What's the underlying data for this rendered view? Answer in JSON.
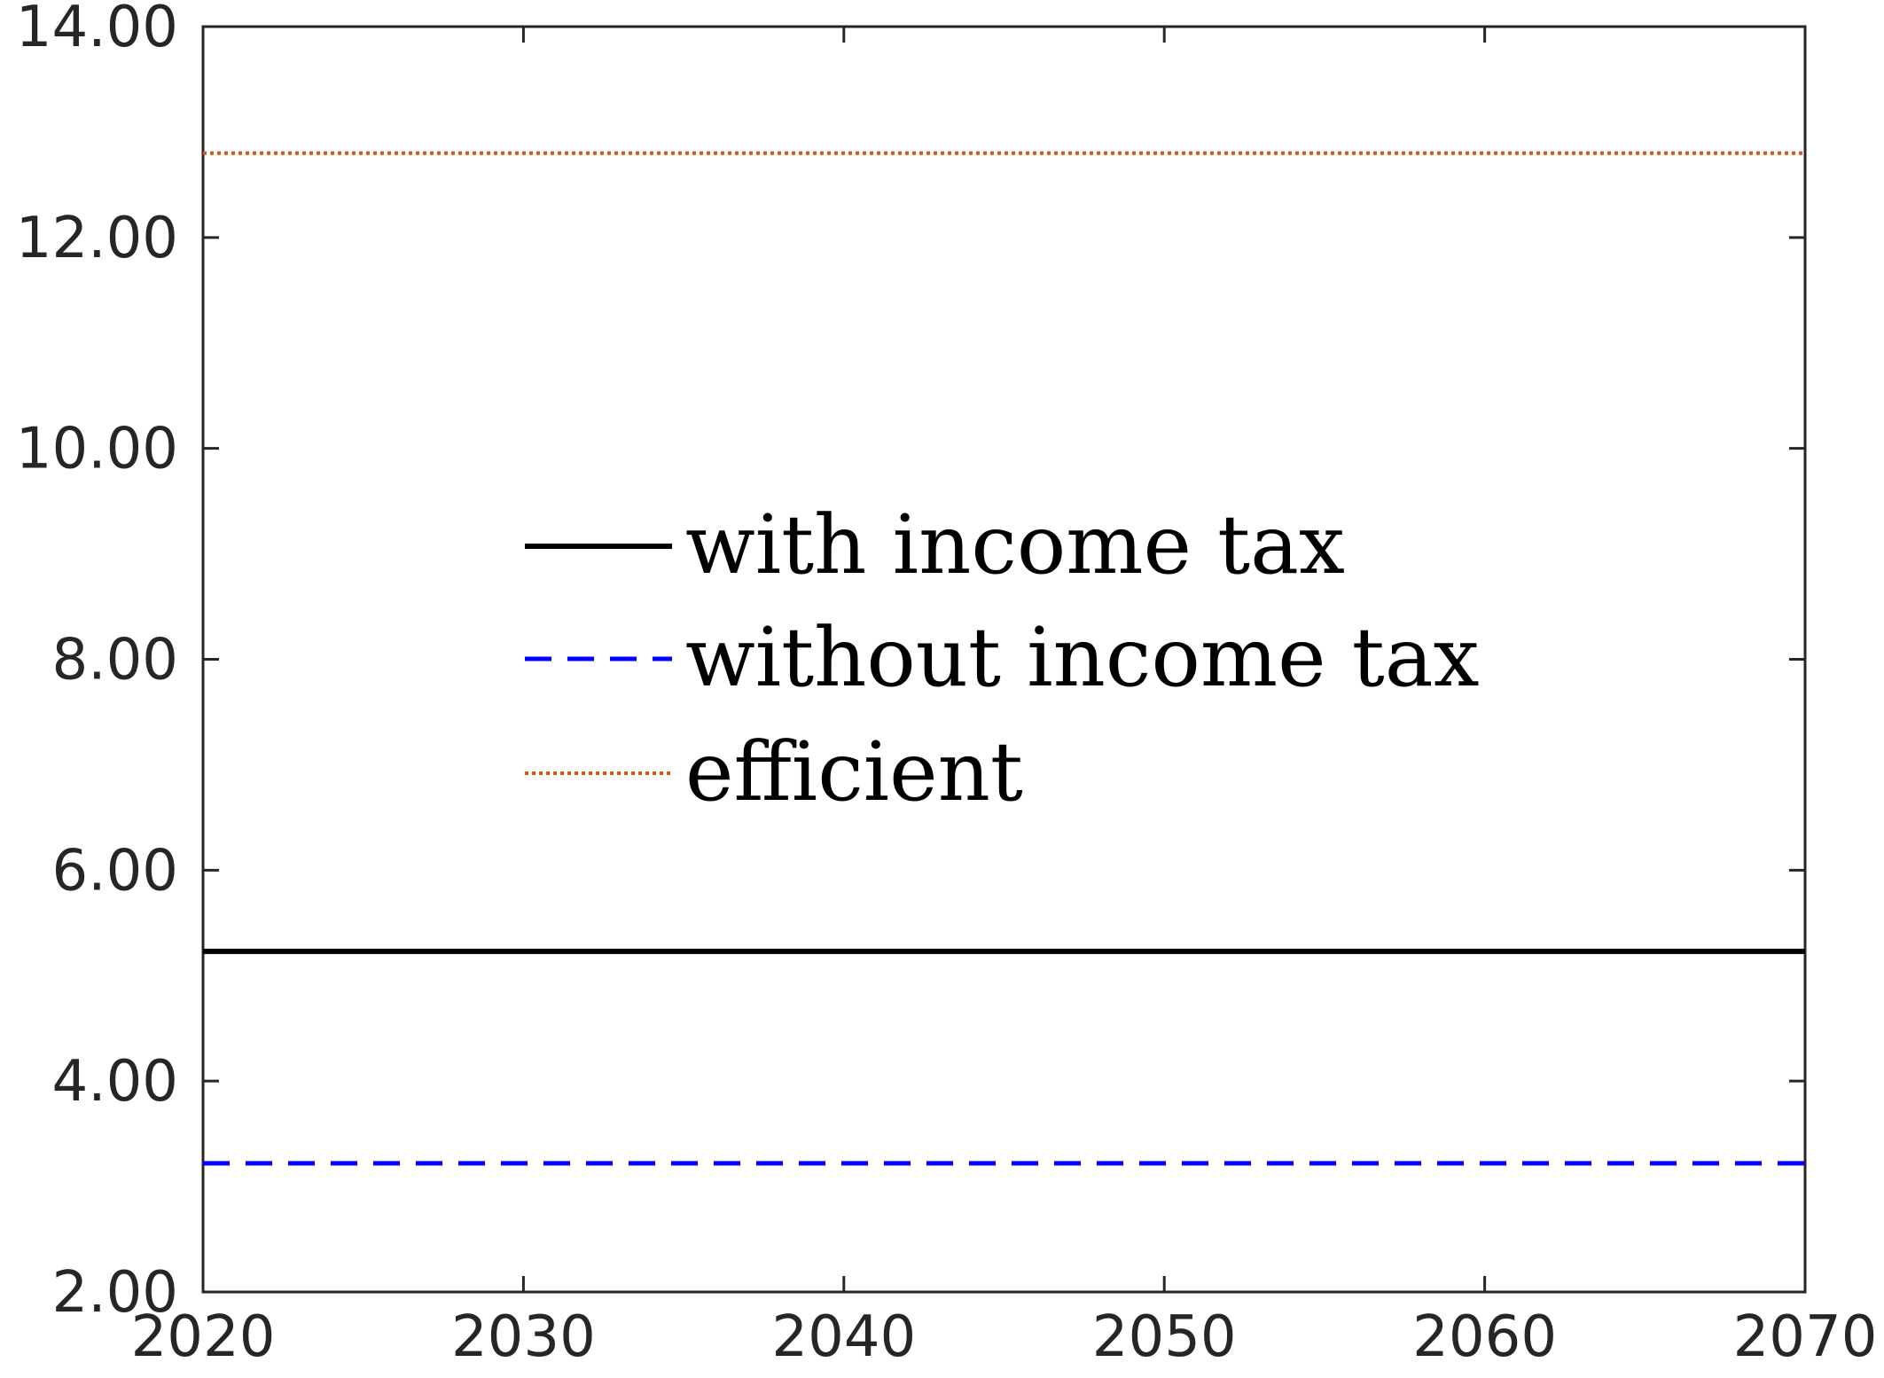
{
  "chart_data": {
    "type": "line",
    "title": "",
    "xlabel": "",
    "ylabel": "",
    "xlim": [
      2020,
      2070
    ],
    "ylim": [
      2,
      14
    ],
    "x_ticks": [
      2020,
      2030,
      2040,
      2050,
      2060,
      2070
    ],
    "x_tick_labels": [
      "2020",
      "2030",
      "2040",
      "2050",
      "2060",
      "2070"
    ],
    "y_ticks": [
      2,
      4,
      6,
      8,
      10,
      12,
      14
    ],
    "y_tick_labels": [
      "2.00",
      "4.00",
      "6.00",
      "8.00",
      "10.00",
      "12.00",
      "14.00"
    ],
    "grid": false,
    "legend_position": "center",
    "series": [
      {
        "name": "with income tax",
        "x": [
          2020,
          2070
        ],
        "y": [
          5.23,
          5.23
        ],
        "color": "#000000",
        "style": "solid"
      },
      {
        "name": "without income tax",
        "x": [
          2020,
          2070
        ],
        "y": [
          3.22,
          3.22
        ],
        "color": "#0000ff",
        "style": "dashed"
      },
      {
        "name": "efficient",
        "x": [
          2020,
          2070
        ],
        "y": [
          12.8,
          12.8
        ],
        "color": "#d95319",
        "style": "dotted"
      }
    ]
  }
}
